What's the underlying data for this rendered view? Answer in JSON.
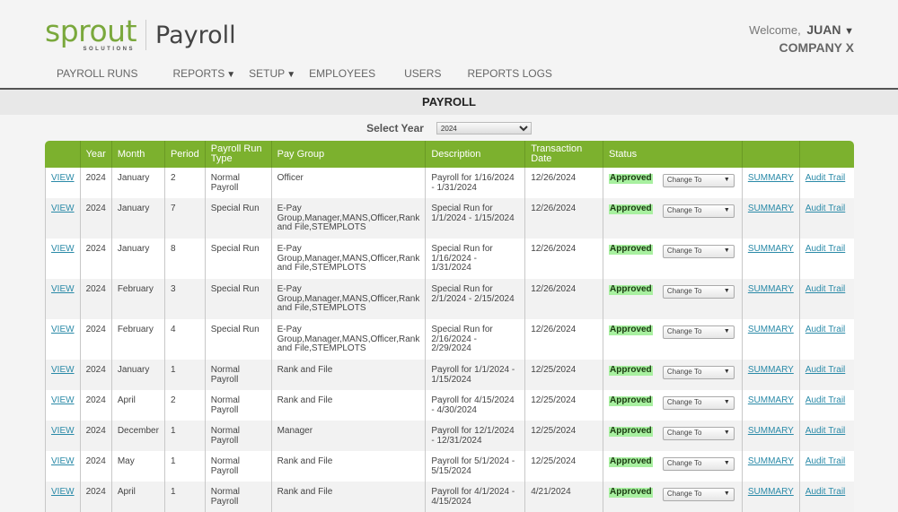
{
  "brand": {
    "logo_word": "sprout",
    "logo_sub": "SOLUTIONS",
    "app_name": "Payroll",
    "accent": "#7cb12e"
  },
  "user": {
    "welcome": "Welcome,",
    "name": "JUAN",
    "caret": "▼",
    "company": "COMPANY X"
  },
  "nav": [
    {
      "label": "PAYROLL RUNS",
      "dropdown": false
    },
    {
      "label": "REPORTS",
      "dropdown": true
    },
    {
      "label": "SETUP",
      "dropdown": true
    },
    {
      "label": "EMPLOYEES",
      "dropdown": false
    },
    {
      "label": "USERS",
      "dropdown": false
    },
    {
      "label": "REPORTS LOGS",
      "dropdown": false
    }
  ],
  "page": {
    "title": "PAYROLL",
    "year_label": "Select Year",
    "year_value": "2024"
  },
  "table": {
    "columns": [
      "",
      "Year",
      "Month",
      "Period",
      "Payroll Run Type",
      "Pay Group",
      "Description",
      "Transaction Date",
      "Status",
      "",
      ""
    ],
    "view_label": "VIEW",
    "change_to_label": "Change To",
    "summary_label": "SUMMARY",
    "audit_label": "Audit Trail",
    "rows": [
      {
        "year": "2024",
        "month": "January",
        "period": "2",
        "type": "Normal Payroll",
        "group": "Officer",
        "desc": "Payroll for 1/16/2024 - 1/31/2024",
        "date": "12/26/2024",
        "status": "Approved"
      },
      {
        "year": "2024",
        "month": "January",
        "period": "7",
        "type": "Special Run",
        "group": "E-Pay Group,Manager,MANS,Officer,Rank and File,STEMPLOTS",
        "desc": "Special Run for 1/1/2024 - 1/15/2024",
        "date": "12/26/2024",
        "status": "Approved"
      },
      {
        "year": "2024",
        "month": "January",
        "period": "8",
        "type": "Special Run",
        "group": "E-Pay Group,Manager,MANS,Officer,Rank and File,STEMPLOTS",
        "desc": "Special Run for 1/16/2024 - 1/31/2024",
        "date": "12/26/2024",
        "status": "Approved"
      },
      {
        "year": "2024",
        "month": "February",
        "period": "3",
        "type": "Special Run",
        "group": "E-Pay Group,Manager,MANS,Officer,Rank and File,STEMPLOTS",
        "desc": "Special Run for 2/1/2024 - 2/15/2024",
        "date": "12/26/2024",
        "status": "Approved"
      },
      {
        "year": "2024",
        "month": "February",
        "period": "4",
        "type": "Special Run",
        "group": "E-Pay Group,Manager,MANS,Officer,Rank and File,STEMPLOTS",
        "desc": "Special Run for 2/16/2024 - 2/29/2024",
        "date": "12/26/2024",
        "status": "Approved"
      },
      {
        "year": "2024",
        "month": "January",
        "period": "1",
        "type": "Normal Payroll",
        "group": "Rank and File",
        "desc": "Payroll for 1/1/2024 - 1/15/2024",
        "date": "12/25/2024",
        "status": "Approved"
      },
      {
        "year": "2024",
        "month": "April",
        "period": "2",
        "type": "Normal Payroll",
        "group": "Rank and File",
        "desc": "Payroll for 4/15/2024 - 4/30/2024",
        "date": "12/25/2024",
        "status": "Approved"
      },
      {
        "year": "2024",
        "month": "December",
        "period": "1",
        "type": "Normal Payroll",
        "group": "Manager",
        "desc": "Payroll for 12/1/2024 - 12/31/2024",
        "date": "12/25/2024",
        "status": "Approved"
      },
      {
        "year": "2024",
        "month": "May",
        "period": "1",
        "type": "Normal Payroll",
        "group": "Rank and File",
        "desc": "Payroll for 5/1/2024 - 5/15/2024",
        "date": "12/25/2024",
        "status": "Approved"
      },
      {
        "year": "2024",
        "month": "April",
        "period": "1",
        "type": "Normal Payroll",
        "group": "Rank and File",
        "desc": "Payroll for 4/1/2024 - 4/15/2024",
        "date": "4/21/2024",
        "status": "Approved"
      }
    ]
  }
}
